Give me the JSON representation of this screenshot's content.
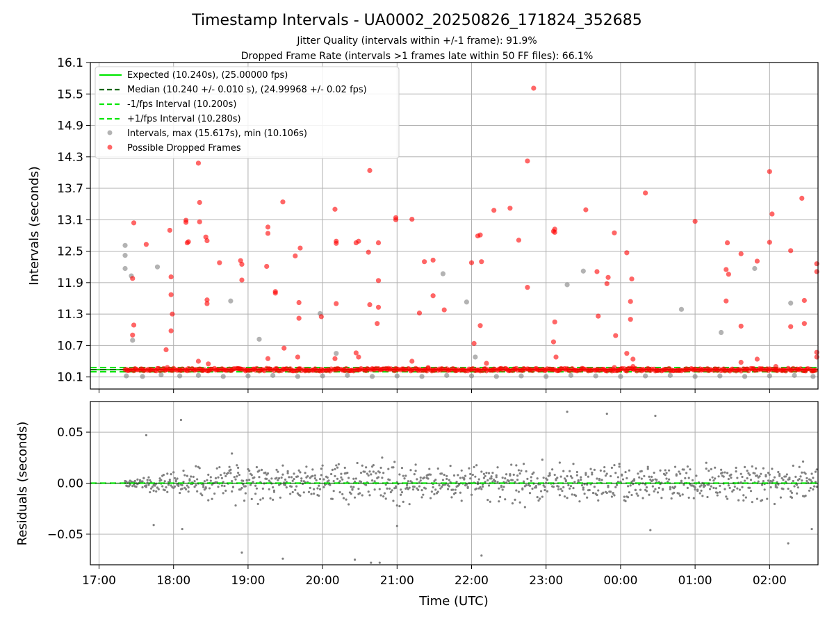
{
  "chart_data": [
    {
      "type": "scatter",
      "panel": "top",
      "title": "Timestamp Intervals - UA0002_20250826_171824_352685",
      "subtitles": [
        "Jitter Quality (intervals within +/-1 frame): 91.9%",
        "Dropped Frame Rate (intervals >1 frames late within 50 FF files): 66.1%"
      ],
      "ylabel": "Intervals (seconds)",
      "ylim": [
        9.87,
        16.1
      ],
      "ytick_labels": [
        "10.1",
        "10.7",
        "11.3",
        "11.9",
        "12.5",
        "13.1",
        "13.7",
        "14.3",
        "14.9",
        "15.5",
        "16.1"
      ],
      "ytick_values": [
        10.1,
        10.7,
        11.3,
        11.9,
        12.5,
        13.1,
        13.7,
        14.3,
        14.9,
        15.5,
        16.1
      ],
      "xlim": [
        "16:53",
        "02:39"
      ],
      "grid": true,
      "legend_position": "top-left",
      "lines": [
        {
          "name": "Expected (10.240s), (25.00000 fps)",
          "y": 10.24,
          "style": "solid",
          "color": "#00e600"
        },
        {
          "name": "Median (10.240 +/- 0.010 s), (24.99968 +/- 0.02 fps)",
          "y": 10.24,
          "style": "dashed",
          "color": "#006400"
        },
        {
          "name": "-1/fps Interval (10.200s)",
          "y": 10.2,
          "style": "dashed",
          "color": "#00e600"
        },
        {
          "name": "+1/fps Interval (10.280s)",
          "y": 10.28,
          "style": "dashed",
          "color": "#00e600"
        }
      ],
      "series": [
        {
          "name": "Intervals, max (15.617s), min (10.106s)",
          "color": "#808080",
          "points": [
            [
              "17:21",
              12.61
            ],
            [
              "17:21",
              12.42
            ],
            [
              "17:21",
              12.17
            ],
            [
              "17:26",
              12.03
            ],
            [
              "17:27",
              10.8
            ],
            [
              "17:47",
              12.2
            ],
            [
              "18:46",
              11.55
            ],
            [
              "19:09",
              10.82
            ],
            [
              "19:58",
              11.31
            ],
            [
              "20:11",
              10.55
            ],
            [
              "21:37",
              12.07
            ],
            [
              "21:56",
              11.53
            ],
            [
              "22:03",
              10.48
            ],
            [
              "23:17",
              11.86
            ],
            [
              "23:30",
              12.12
            ],
            [
              "00:49",
              11.39
            ],
            [
              "01:21",
              10.95
            ],
            [
              "01:48",
              12.17
            ],
            [
              "02:17",
              11.51
            ],
            [
              "17:22",
              10.12
            ],
            [
              "17:35",
              10.11
            ],
            [
              "17:50",
              10.14
            ],
            [
              "18:05",
              10.12
            ],
            [
              "18:20",
              10.13
            ],
            [
              "18:40",
              10.11
            ],
            [
              "19:00",
              10.12
            ],
            [
              "19:20",
              10.13
            ],
            [
              "19:40",
              10.11
            ],
            [
              "20:00",
              10.12
            ],
            [
              "20:20",
              10.13
            ],
            [
              "20:40",
              10.11
            ],
            [
              "21:00",
              10.12
            ],
            [
              "21:20",
              10.11
            ],
            [
              "21:40",
              10.13
            ],
            [
              "22:00",
              10.12
            ],
            [
              "22:20",
              10.11
            ],
            [
              "22:40",
              10.12
            ],
            [
              "23:00",
              10.11
            ],
            [
              "23:20",
              10.13
            ],
            [
              "23:40",
              10.12
            ],
            [
              "00:00",
              10.11
            ],
            [
              "00:20",
              10.12
            ],
            [
              "00:40",
              10.13
            ],
            [
              "01:00",
              10.11
            ],
            [
              "01:20",
              10.12
            ],
            [
              "01:40",
              10.11
            ],
            [
              "02:00",
              10.12
            ],
            [
              "02:20",
              10.13
            ],
            [
              "02:35",
              10.11
            ]
          ]
        },
        {
          "name": "Possible Dropped Frames",
          "color": "#ff0000",
          "points": [
            [
              "17:28",
              13.04
            ],
            [
              "17:27",
              11.98
            ],
            [
              "17:28",
              11.09
            ],
            [
              "17:27",
              10.9
            ],
            [
              "17:38",
              12.63
            ],
            [
              "17:54",
              10.62
            ],
            [
              "17:57",
              12.9
            ],
            [
              "17:58",
              12.01
            ],
            [
              "17:58",
              11.67
            ],
            [
              "17:58",
              10.98
            ],
            [
              "17:59",
              11.3
            ],
            [
              "18:10",
              13.05
            ],
            [
              "18:10",
              13.09
            ],
            [
              "18:11",
              12.66
            ],
            [
              "18:12",
              12.68
            ],
            [
              "18:20",
              14.18
            ],
            [
              "18:21",
              13.06
            ],
            [
              "18:21",
              13.43
            ],
            [
              "18:26",
              12.77
            ],
            [
              "18:27",
              12.7
            ],
            [
              "18:27",
              11.57
            ],
            [
              "18:27",
              11.5
            ],
            [
              "18:37",
              12.28
            ],
            [
              "18:54",
              12.32
            ],
            [
              "18:55",
              12.25
            ],
            [
              "18:55",
              11.95
            ],
            [
              "19:15",
              12.21
            ],
            [
              "19:16",
              12.96
            ],
            [
              "19:16",
              12.84
            ],
            [
              "19:22",
              11.73
            ],
            [
              "19:22",
              11.7
            ],
            [
              "19:28",
              13.44
            ],
            [
              "19:38",
              12.41
            ],
            [
              "19:42",
              12.56
            ],
            [
              "19:41",
              11.52
            ],
            [
              "19:41",
              11.22
            ],
            [
              "19:59",
              11.25
            ],
            [
              "20:10",
              13.3
            ],
            [
              "20:11",
              12.69
            ],
            [
              "20:11",
              12.65
            ],
            [
              "20:11",
              11.5
            ],
            [
              "20:27",
              12.66
            ],
            [
              "20:29",
              12.69
            ],
            [
              "20:37",
              12.48
            ],
            [
              "20:38",
              14.04
            ],
            [
              "20:38",
              11.48
            ],
            [
              "20:45",
              12.66
            ],
            [
              "20:45",
              11.94
            ],
            [
              "20:45",
              11.43
            ],
            [
              "20:44",
              11.12
            ],
            [
              "20:59",
              13.1
            ],
            [
              "20:59",
              13.14
            ],
            [
              "21:12",
              13.11
            ],
            [
              "21:18",
              11.32
            ],
            [
              "21:22",
              12.3
            ],
            [
              "21:29",
              12.33
            ],
            [
              "21:29",
              11.65
            ],
            [
              "21:38",
              11.38
            ],
            [
              "22:00",
              12.28
            ],
            [
              "22:05",
              12.79
            ],
            [
              "22:07",
              12.81
            ],
            [
              "22:08",
              12.3
            ],
            [
              "22:07",
              11.08
            ],
            [
              "22:02",
              10.74
            ],
            [
              "22:18",
              13.28
            ],
            [
              "22:31",
              13.32
            ],
            [
              "22:38",
              12.71
            ],
            [
              "22:45",
              14.22
            ],
            [
              "22:45",
              11.81
            ],
            [
              "22:50",
              15.61
            ],
            [
              "23:06",
              12.88
            ],
            [
              "23:07",
              12.92
            ],
            [
              "23:07",
              12.86
            ],
            [
              "23:07",
              11.15
            ],
            [
              "23:06",
              10.77
            ],
            [
              "23:32",
              13.29
            ],
            [
              "23:41",
              12.11
            ],
            [
              "23:50",
              12.0
            ],
            [
              "23:49",
              11.88
            ],
            [
              "23:42",
              11.26
            ],
            [
              "23:56",
              10.89
            ],
            [
              "23:55",
              12.85
            ],
            [
              "24:05",
              12.47
            ],
            [
              "24:09",
              11.97
            ],
            [
              "24:08",
              11.54
            ],
            [
              "24:08",
              11.2
            ],
            [
              "24:05",
              10.55
            ],
            [
              "24:20",
              13.61
            ],
            [
              "24:10",
              10.44
            ],
            [
              "24:10",
              10.3
            ],
            [
              "01:00",
              13.07
            ],
            [
              "01:26",
              12.66
            ],
            [
              "01:25",
              12.15
            ],
            [
              "01:27",
              12.06
            ],
            [
              "01:25",
              11.55
            ],
            [
              "01:37",
              12.45
            ],
            [
              "01:37",
              11.07
            ],
            [
              "01:50",
              12.31
            ],
            [
              "02:00",
              14.02
            ],
            [
              "02:00",
              12.67
            ],
            [
              "02:02",
              13.21
            ],
            [
              "02:17",
              12.51
            ],
            [
              "02:17",
              11.06
            ],
            [
              "02:26",
              13.51
            ],
            [
              "02:28",
              11.56
            ],
            [
              "02:28",
              11.12
            ],
            [
              "02:38",
              12.26
            ],
            [
              "02:38",
              12.11
            ],
            [
              "02:38",
              10.57
            ],
            [
              "02:38",
              10.48
            ],
            [
              "17:55",
              10.28
            ],
            [
              "18:20",
              10.4
            ],
            [
              "18:28",
              10.35
            ],
            [
              "19:16",
              10.45
            ],
            [
              "19:29",
              10.65
            ],
            [
              "19:40",
              10.48
            ],
            [
              "20:10",
              10.45
            ],
            [
              "20:27",
              10.56
            ],
            [
              "20:29",
              10.48
            ],
            [
              "21:12",
              10.4
            ],
            [
              "21:25",
              10.28
            ],
            [
              "22:12",
              10.36
            ],
            [
              "23:08",
              10.48
            ],
            [
              "23:55",
              10.28
            ],
            [
              "01:37",
              10.38
            ],
            [
              "01:50",
              10.44
            ],
            [
              "02:05",
              10.3
            ]
          ]
        }
      ]
    },
    {
      "type": "scatter",
      "panel": "bottom",
      "ylabel": "Residuals (seconds)",
      "xlabel": "Time (UTC)",
      "ylim": [
        -0.08,
        0.08
      ],
      "ytick_labels": [
        "−0.05",
        "0.00",
        "0.05"
      ],
      "ytick_values": [
        -0.05,
        0.0,
        0.05
      ],
      "xtick_labels": [
        "17:00",
        "18:00",
        "19:00",
        "20:00",
        "21:00",
        "22:00",
        "23:00",
        "00:00",
        "01:00",
        "02:00"
      ],
      "xlim": [
        "16:53",
        "02:39"
      ],
      "grid": true,
      "zero_line": {
        "y": 0,
        "color": "#00e600",
        "style": "dashed"
      },
      "series": [
        {
          "name": "Residuals",
          "color": "#808080",
          "points": [
            [
              "17:38",
              0.047
            ],
            [
              "17:44",
              -0.041
            ],
            [
              "18:06",
              0.062
            ],
            [
              "18:07",
              -0.045
            ],
            [
              "18:47",
              0.029
            ],
            [
              "18:55",
              -0.068
            ],
            [
              "19:28",
              -0.074
            ],
            [
              "20:26",
              -0.075
            ],
            [
              "20:39",
              -0.078
            ],
            [
              "20:46",
              -0.078
            ],
            [
              "21:00",
              -0.042
            ],
            [
              "22:08",
              -0.071
            ],
            [
              "23:17",
              0.07
            ],
            [
              "23:49",
              0.068
            ],
            [
              "24:24",
              -0.046
            ],
            [
              "24:28",
              0.066
            ],
            [
              "02:15",
              -0.059
            ],
            [
              "02:34",
              -0.045
            ]
          ],
          "envelope": [
            [
              "17:20",
              0.004
            ],
            [
              "17:30",
              0.008
            ],
            [
              "17:45",
              0.012
            ],
            [
              "18:00",
              0.018
            ],
            [
              "18:30",
              0.024
            ],
            [
              "19:00",
              0.027
            ],
            [
              "19:30",
              0.027
            ],
            [
              "20:00",
              0.027
            ],
            [
              "20:30",
              0.028
            ],
            [
              "21:00",
              0.026
            ],
            [
              "21:30",
              0.024
            ],
            [
              "22:00",
              0.026
            ],
            [
              "22:30",
              0.027
            ],
            [
              "23:00",
              0.027
            ],
            [
              "23:30",
              0.028
            ],
            [
              "24:00",
              0.027
            ],
            [
              "24:30",
              0.026
            ],
            [
              "25:00",
              0.024
            ],
            [
              "25:30",
              0.025
            ],
            [
              "26:00",
              0.026
            ],
            [
              "26:30",
              0.026
            ],
            [
              "26:39",
              0.026
            ]
          ]
        }
      ]
    }
  ],
  "legend_entries": [
    {
      "label": "Expected (10.240s), (25.00000 fps)",
      "kind": "line",
      "style": "solid",
      "color": "#00e600"
    },
    {
      "label": "Median (10.240 +/- 0.010 s), (24.99968 +/- 0.02 fps)",
      "kind": "line",
      "style": "dashed",
      "color": "#006400"
    },
    {
      "label": "-1/fps Interval (10.200s)",
      "kind": "line",
      "style": "dashed",
      "color": "#00e600"
    },
    {
      "label": "+1/fps Interval (10.280s)",
      "kind": "line",
      "style": "dashed",
      "color": "#00e600"
    },
    {
      "label": "Intervals, max (15.617s), min (10.106s)",
      "kind": "marker",
      "color": "#808080"
    },
    {
      "label": "Possible Dropped Frames",
      "kind": "marker",
      "color": "#ff0000"
    }
  ]
}
